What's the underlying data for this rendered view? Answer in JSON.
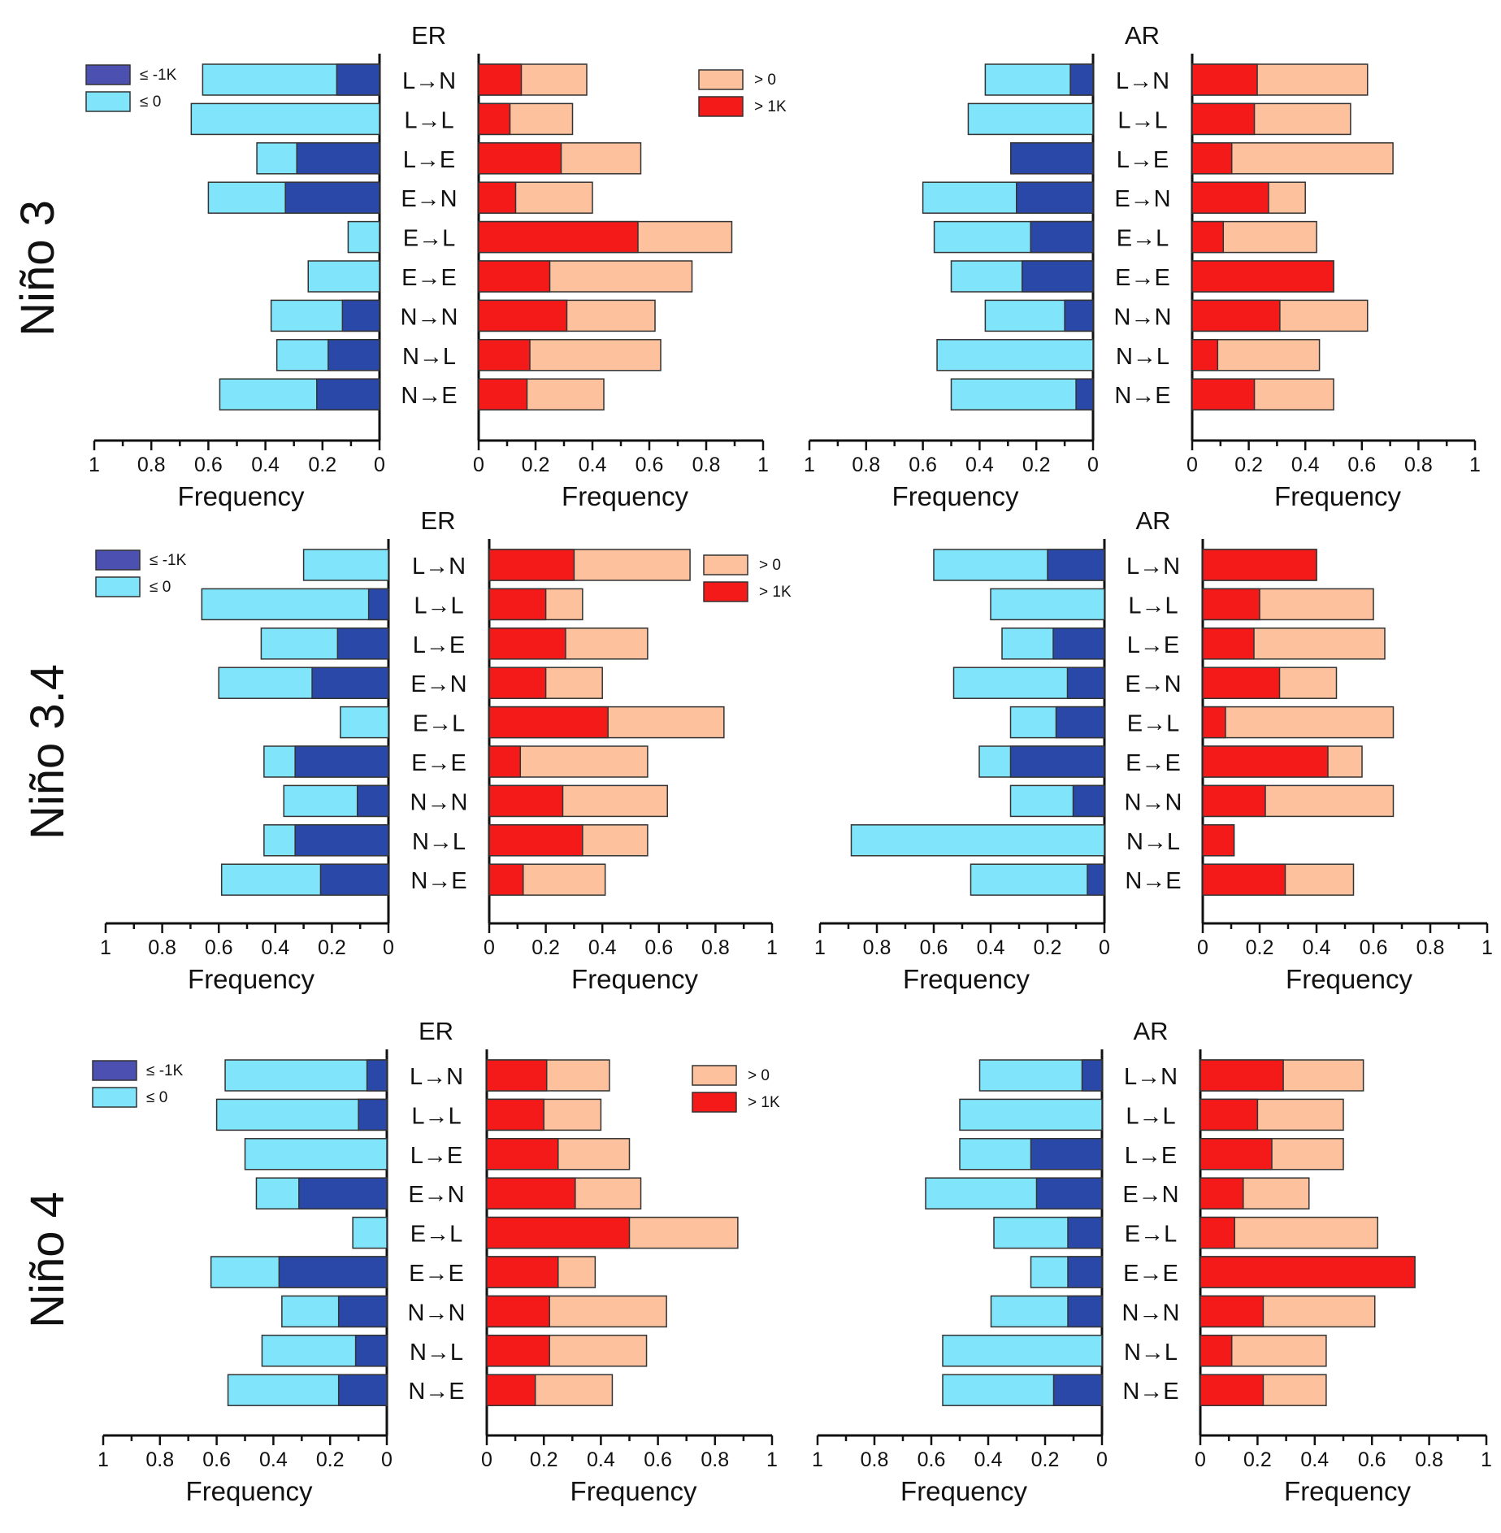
{
  "colors": {
    "neg_le_minus1k": "#2a48a8",
    "neg_le_0": "#80e4fa",
    "pos_gt_0": "#fdc19e",
    "pos_gt_1k": "#f51a1a",
    "legend_neg_le_minus1k": "#4c50b0",
    "axis": "#111111",
    "bar_outline": "#333333"
  },
  "legend": {
    "neg": [
      {
        "key": "le_minus1k",
        "label": "≤ -1K"
      },
      {
        "key": "le_0",
        "label": "≤ 0"
      }
    ],
    "pos": [
      {
        "key": "gt_0",
        "label": "> 0"
      },
      {
        "key": "gt_1k",
        "label": "> 1K"
      }
    ]
  },
  "axis": {
    "xlabel": "Frequency",
    "neg_ticks": [
      "1",
      "0.8",
      "0.6",
      "0.4",
      "0.2",
      "0"
    ],
    "pos_ticks": [
      "0",
      "0.2",
      "0.4",
      "0.6",
      "0.8",
      "1"
    ]
  },
  "chart_data": [
    {
      "type": "bar",
      "orientation": "horizontal-diverging",
      "row": "Niño 3",
      "title": "ER",
      "categories": [
        "L→N",
        "L→L",
        "L→E",
        "E→N",
        "E→L",
        "E→E",
        "N→N",
        "N→L",
        "N→E"
      ],
      "series": [
        {
          "name": "≤ 0",
          "values": [
            0.62,
            0.66,
            0.43,
            0.6,
            0.11,
            0.25,
            0.38,
            0.36,
            0.56
          ]
        },
        {
          "name": "≤ -1K",
          "values": [
            0.15,
            0,
            0.29,
            0.33,
            0,
            0,
            0.13,
            0.18,
            0.22
          ]
        },
        {
          "name": "> 0",
          "values": [
            0.38,
            0.33,
            0.57,
            0.4,
            0.89,
            0.75,
            0.62,
            0.64,
            0.44
          ]
        },
        {
          "name": "> 1K",
          "values": [
            0.15,
            0.11,
            0.29,
            0.13,
            0.56,
            0.25,
            0.31,
            0.18,
            0.17
          ]
        }
      ],
      "xlabel_left": "Frequency",
      "xlabel_right": "Frequency",
      "xlim": [
        0,
        1
      ]
    },
    {
      "type": "bar",
      "orientation": "horizontal-diverging",
      "row": "Niño 3",
      "title": "AR",
      "categories": [
        "L→N",
        "L→L",
        "L→E",
        "E→N",
        "E→L",
        "E→E",
        "N→N",
        "N→L",
        "N→E"
      ],
      "series": [
        {
          "name": "≤ 0",
          "values": [
            0.38,
            0.44,
            0.29,
            0.6,
            0.56,
            0.5,
            0.38,
            0.55,
            0.5
          ]
        },
        {
          "name": "≤ -1K",
          "values": [
            0.08,
            0,
            0.29,
            0.27,
            0.22,
            0.25,
            0.1,
            0,
            0.06
          ]
        },
        {
          "name": "> 0",
          "values": [
            0.62,
            0.56,
            0.71,
            0.4,
            0.44,
            0.5,
            0.62,
            0.45,
            0.5
          ]
        },
        {
          "name": "> 1K",
          "values": [
            0.23,
            0.22,
            0.14,
            0.27,
            0.11,
            0.5,
            0.31,
            0.09,
            0.22
          ]
        }
      ],
      "xlabel_left": "Frequency",
      "xlabel_right": "Frequency",
      "xlim": [
        0,
        1
      ]
    },
    {
      "type": "bar",
      "orientation": "horizontal-diverging",
      "row": "Niño 3.4",
      "title": "ER",
      "categories": [
        "L→N",
        "L→L",
        "L→E",
        "E→N",
        "E→L",
        "E→E",
        "N→N",
        "N→L",
        "N→E"
      ],
      "series": [
        {
          "name": "≤ 0",
          "values": [
            0.3,
            0.66,
            0.45,
            0.6,
            0.17,
            0.44,
            0.37,
            0.44,
            0.59
          ]
        },
        {
          "name": "≤ -1K",
          "values": [
            0,
            0.07,
            0.18,
            0.27,
            0,
            0.33,
            0.11,
            0.33,
            0.24
          ]
        },
        {
          "name": "> 0",
          "values": [
            0.71,
            0.33,
            0.56,
            0.4,
            0.83,
            0.56,
            0.63,
            0.56,
            0.41
          ]
        },
        {
          "name": "> 1K",
          "values": [
            0.3,
            0.2,
            0.27,
            0.2,
            0.42,
            0.11,
            0.26,
            0.33,
            0.12
          ]
        }
      ],
      "xlabel_left": "Frequency",
      "xlabel_right": "Frequency",
      "xlim": [
        0,
        1
      ]
    },
    {
      "type": "bar",
      "orientation": "horizontal-diverging",
      "row": "Niño 3.4",
      "title": "AR",
      "categories": [
        "L→N",
        "L→L",
        "L→E",
        "E→N",
        "E→L",
        "E→E",
        "N→N",
        "N→L",
        "N→E"
      ],
      "series": [
        {
          "name": "≤ 0",
          "values": [
            0.6,
            0.4,
            0.36,
            0.53,
            0.33,
            0.44,
            0.33,
            0.89,
            0.47
          ]
        },
        {
          "name": "≤ -1K",
          "values": [
            0.2,
            0,
            0.18,
            0.13,
            0.17,
            0.33,
            0.11,
            0,
            0.06
          ]
        },
        {
          "name": "> 0",
          "values": [
            0.4,
            0.6,
            0.64,
            0.47,
            0.67,
            0.56,
            0.67,
            0.11,
            0.53
          ]
        },
        {
          "name": "> 1K",
          "values": [
            0.4,
            0.2,
            0.18,
            0.27,
            0.08,
            0.44,
            0.22,
            0.11,
            0.29
          ]
        }
      ],
      "xlabel_left": "Frequency",
      "xlabel_right": "Frequency",
      "xlim": [
        0,
        1
      ]
    },
    {
      "type": "bar",
      "orientation": "horizontal-diverging",
      "row": "Niño 4",
      "title": "ER",
      "categories": [
        "L→N",
        "L→L",
        "L→E",
        "E→N",
        "E→L",
        "E→E",
        "N→N",
        "N→L",
        "N→E"
      ],
      "series": [
        {
          "name": "≤ 0",
          "values": [
            0.57,
            0.6,
            0.5,
            0.46,
            0.12,
            0.62,
            0.37,
            0.44,
            0.56
          ]
        },
        {
          "name": "≤ -1K",
          "values": [
            0.07,
            0.1,
            0,
            0.31,
            0,
            0.38,
            0.17,
            0.11,
            0.17
          ]
        },
        {
          "name": "> 0",
          "values": [
            0.43,
            0.4,
            0.5,
            0.54,
            0.88,
            0.38,
            0.63,
            0.56,
            0.44
          ]
        },
        {
          "name": "> 1K",
          "values": [
            0.21,
            0.2,
            0.25,
            0.31,
            0.5,
            0.25,
            0.22,
            0.22,
            0.17
          ]
        }
      ],
      "xlabel_left": "Frequency",
      "xlabel_right": "Frequency",
      "xlim": [
        0,
        1
      ]
    },
    {
      "type": "bar",
      "orientation": "horizontal-diverging",
      "row": "Niño 4",
      "title": "AR",
      "categories": [
        "L→N",
        "L→L",
        "L→E",
        "E→N",
        "E→L",
        "E→E",
        "N→N",
        "N→L",
        "N→E"
      ],
      "series": [
        {
          "name": "≤ 0",
          "values": [
            0.43,
            0.5,
            0.5,
            0.62,
            0.38,
            0.25,
            0.39,
            0.56,
            0.56
          ]
        },
        {
          "name": "≤ -1K",
          "values": [
            0.07,
            0,
            0.25,
            0.23,
            0.12,
            0.12,
            0.12,
            0,
            0.17
          ]
        },
        {
          "name": "> 0",
          "values": [
            0.57,
            0.5,
            0.5,
            0.38,
            0.62,
            0.75,
            0.61,
            0.44,
            0.44
          ]
        },
        {
          "name": "> 1K",
          "values": [
            0.29,
            0.2,
            0.25,
            0.15,
            0.12,
            0.75,
            0.22,
            0.11,
            0.22
          ]
        }
      ],
      "xlabel_left": "Frequency",
      "xlabel_right": "Frequency",
      "xlim": [
        0,
        1
      ]
    }
  ]
}
